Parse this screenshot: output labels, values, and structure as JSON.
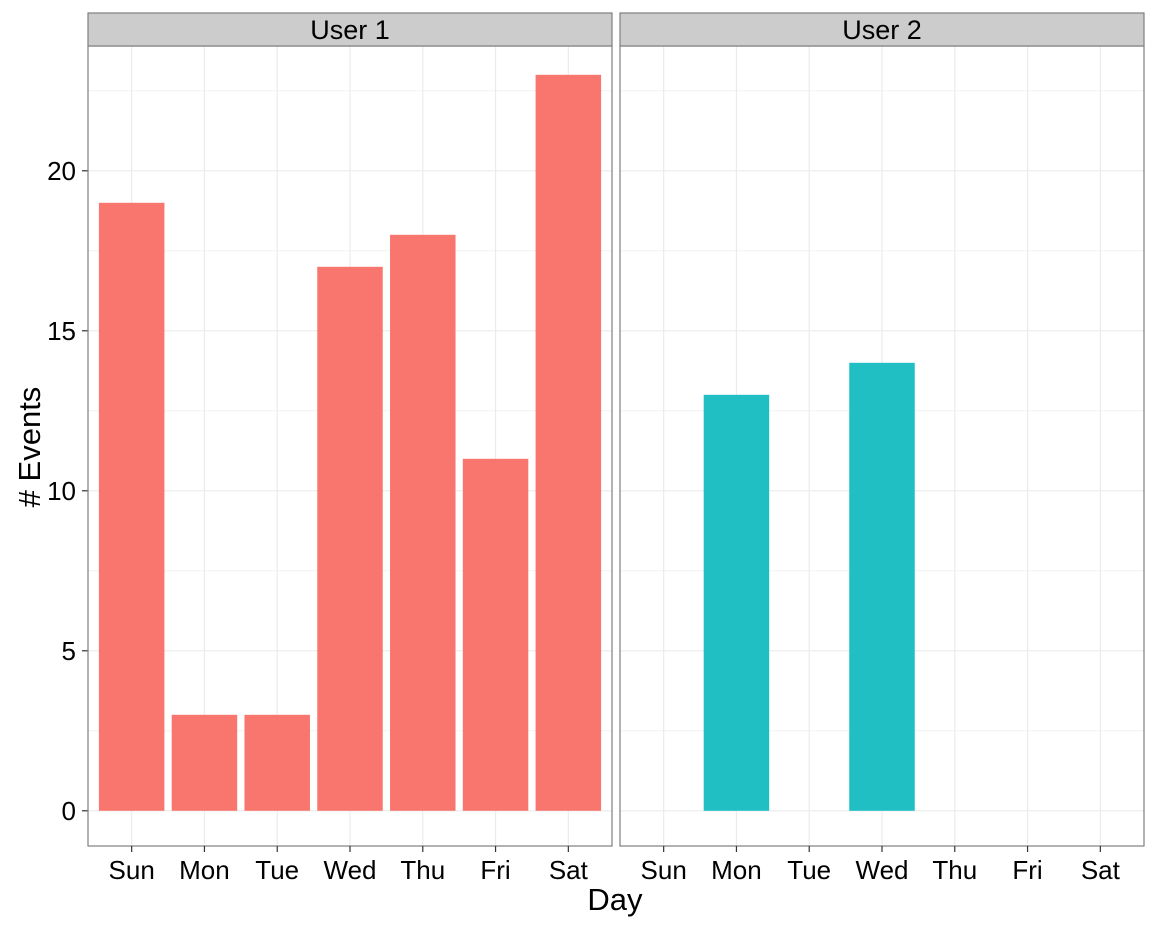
{
  "chart_data": {
    "type": "bar",
    "xlabel": "Day",
    "ylabel": "# Events",
    "categories": [
      "Sun",
      "Mon",
      "Tue",
      "Wed",
      "Thu",
      "Fri",
      "Sat"
    ],
    "ylim": [
      -1.1,
      23.9
    ],
    "yticks": [
      0,
      5,
      10,
      15,
      20
    ],
    "grid": true,
    "legend": "none",
    "facets": [
      {
        "name": "User 1",
        "color": "#F8766D",
        "values": [
          19,
          3,
          3,
          17,
          18,
          11,
          23
        ]
      },
      {
        "name": "User 2",
        "color": "#1FBFC4",
        "values": [
          0,
          13,
          0,
          14,
          0,
          0,
          0
        ]
      }
    ]
  }
}
